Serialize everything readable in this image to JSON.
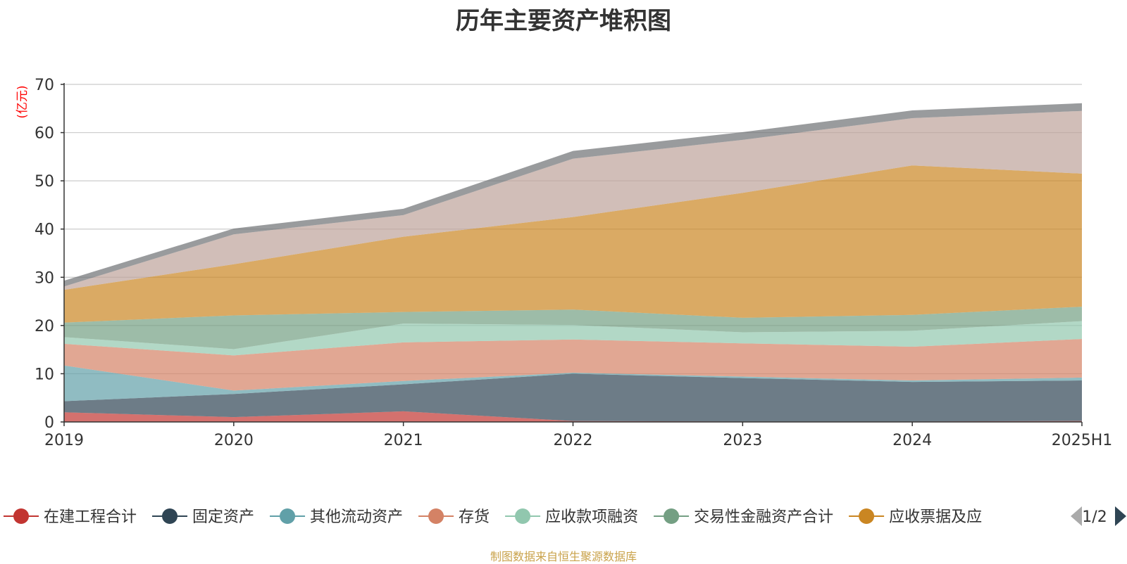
{
  "chart_data": {
    "type": "area",
    "title": "历年主要资产堆积图",
    "ylabel": "(亿元)",
    "categories": [
      "2019",
      "2020",
      "2021",
      "2022",
      "2023",
      "2024",
      "2025H1"
    ],
    "ylim": [
      0,
      70
    ],
    "yticks": [
      0,
      10,
      20,
      30,
      40,
      50,
      60,
      70
    ],
    "grid": true,
    "stacked": true,
    "series": [
      {
        "name": "在建工程合计",
        "color": "#c23531",
        "values": [
          2.0,
          1.0,
          2.2,
          0.2,
          0.1,
          0.1,
          0.2
        ]
      },
      {
        "name": "固定资产",
        "color": "#2f4554",
        "values": [
          2.3,
          4.8,
          5.6,
          9.8,
          9.0,
          8.2,
          8.4
        ]
      },
      {
        "name": "其他流动资产",
        "color": "#61a0a8",
        "values": [
          7.4,
          0.7,
          0.7,
          0.2,
          0.3,
          0.3,
          0.6
        ]
      },
      {
        "name": "存货",
        "color": "#d48265",
        "values": [
          4.5,
          7.3,
          8.0,
          6.9,
          6.9,
          7.0,
          8.0
        ]
      },
      {
        "name": "应收款项融资",
        "color": "#91c7ae",
        "values": [
          1.4,
          1.3,
          3.9,
          3.0,
          2.3,
          3.3,
          3.7
        ]
      },
      {
        "name": "交易性金融资产合计",
        "color": "#749f83",
        "values": [
          3.0,
          7.0,
          2.4,
          3.2,
          3.0,
          3.3,
          3.0
        ]
      },
      {
        "name": "应收票据及应",
        "color": "#ca8622",
        "values": [
          6.8,
          10.6,
          15.6,
          19.2,
          25.9,
          31.0,
          27.6
        ]
      },
      {
        "name": "",
        "color": "#bda29a",
        "values": [
          0.7,
          6.2,
          4.5,
          12.1,
          11.0,
          9.8,
          13.0
        ]
      },
      {
        "name": "",
        "color": "#6e7074",
        "values": [
          1.2,
          1.2,
          1.3,
          1.6,
          1.6,
          1.6,
          1.6
        ]
      }
    ]
  },
  "legend": {
    "page_indicator": "1/2",
    "prev_icon": "triangle-left-icon",
    "next_icon": "triangle-right-icon",
    "visible_count": 7
  },
  "footer": {
    "source_text": "制图数据来自恒生聚源数据库",
    "color": "#c9a24a"
  },
  "colors": {
    "ylabel": "#ff0000",
    "axis": "#333333",
    "grid": "#cccccc",
    "pager_prev_disabled": "#aaaaaa",
    "pager_next": "#2f4554"
  }
}
